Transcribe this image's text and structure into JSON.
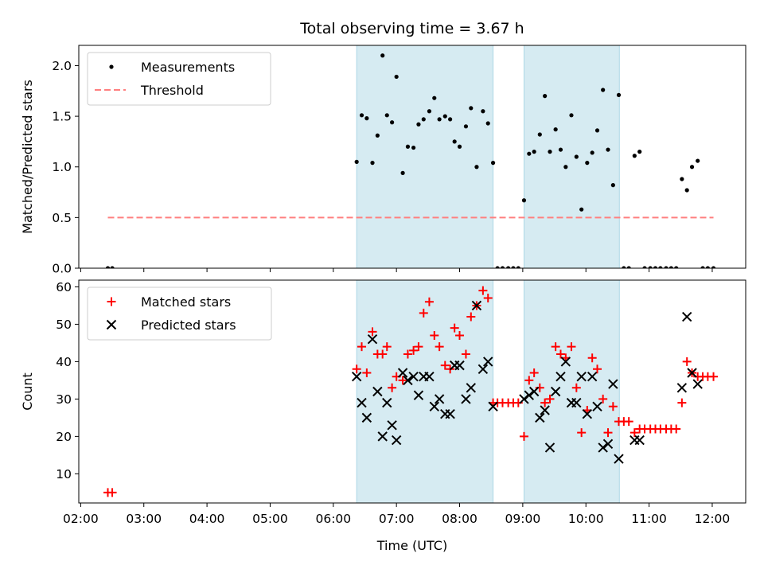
{
  "title": "Total observing time = 3.67 h",
  "colors": {
    "shade": "#add8e6",
    "measurements": "#000000",
    "threshold": "#ff7f7f",
    "matched": "#ff0000",
    "predicted": "#000000"
  },
  "chart_data": [
    {
      "type": "scatter",
      "ylabel": "Matched/Predicted stars",
      "xlim": [
        1.97,
        12.53
      ],
      "ylim": [
        0,
        2.2
      ],
      "yticks": [
        0.0,
        0.5,
        1.0,
        1.5,
        2.0
      ],
      "yticklabels": [
        "0.0",
        "0.5",
        "1.0",
        "1.5",
        "2.0"
      ],
      "legend": {
        "location": "top-left"
      },
      "shaded_spans": [
        [
          6.37,
          8.53
        ],
        [
          9.02,
          10.53
        ]
      ],
      "series": [
        {
          "name": "Measurements",
          "marker": "dot",
          "x": [
            2.43,
            2.5,
            6.37,
            6.45,
            6.53,
            6.62,
            6.7,
            6.78,
            6.85,
            6.93,
            7.0,
            7.1,
            7.18,
            7.27,
            7.35,
            7.43,
            7.52,
            7.6,
            7.68,
            7.77,
            7.85,
            7.92,
            8.0,
            8.1,
            8.18,
            8.27,
            8.37,
            8.45,
            8.53,
            8.6,
            8.68,
            8.77,
            8.85,
            8.93,
            9.02,
            9.1,
            9.18,
            9.27,
            9.35,
            9.43,
            9.52,
            9.6,
            9.68,
            9.77,
            9.85,
            9.93,
            10.02,
            10.1,
            10.18,
            10.27,
            10.35,
            10.43,
            10.52,
            10.6,
            10.68,
            10.77,
            10.85,
            10.93,
            11.02,
            11.1,
            11.18,
            11.27,
            11.35,
            11.43,
            11.52,
            11.6,
            11.68,
            11.77,
            11.85,
            11.93,
            12.02
          ],
          "y": [
            0,
            0,
            1.05,
            1.51,
            1.48,
            1.04,
            1.31,
            2.1,
            1.51,
            1.44,
            1.89,
            0.94,
            1.2,
            1.19,
            1.42,
            1.47,
            1.55,
            1.68,
            1.47,
            1.5,
            1.47,
            1.25,
            1.2,
            1.4,
            1.58,
            1.0,
            1.55,
            1.43,
            1.04,
            0,
            0,
            0,
            0,
            0,
            0.67,
            1.13,
            1.15,
            1.32,
            1.7,
            1.15,
            1.37,
            1.17,
            1.0,
            1.51,
            1.1,
            0.58,
            1.04,
            1.14,
            1.36,
            1.76,
            1.17,
            0.82,
            1.71,
            0,
            0,
            1.11,
            1.15,
            0,
            0,
            0,
            0,
            0,
            0,
            0,
            0.88,
            0.77,
            1.0,
            1.06,
            0,
            0,
            0
          ]
        },
        {
          "name": "Threshold",
          "style": "dashed",
          "x": [
            2.43,
            12.02
          ],
          "y": [
            0.5,
            0.5
          ]
        }
      ]
    },
    {
      "type": "scatter",
      "xlabel": "Time (UTC)",
      "ylabel": "Count",
      "xlim": [
        1.97,
        12.53
      ],
      "ylim": [
        2.2,
        61.8
      ],
      "xticks": [
        2,
        3,
        4,
        5,
        6,
        7,
        8,
        9,
        10,
        11,
        12
      ],
      "xticklabels": [
        "02:00",
        "03:00",
        "04:00",
        "05:00",
        "06:00",
        "07:00",
        "08:00",
        "09:00",
        "10:00",
        "11:00",
        "12:00"
      ],
      "yticks": [
        10,
        20,
        30,
        40,
        50,
        60
      ],
      "yticklabels": [
        "10",
        "20",
        "30",
        "40",
        "50",
        "60"
      ],
      "legend": {
        "location": "top-left"
      },
      "shaded_spans": [
        [
          6.37,
          8.53
        ],
        [
          9.02,
          10.53
        ]
      ],
      "series": [
        {
          "name": "Matched stars",
          "marker": "plus",
          "x": [
            2.43,
            2.5,
            6.37,
            6.45,
            6.53,
            6.62,
            6.7,
            6.78,
            6.85,
            6.93,
            7.0,
            7.1,
            7.18,
            7.27,
            7.35,
            7.43,
            7.52,
            7.6,
            7.68,
            7.77,
            7.85,
            7.92,
            8.0,
            8.1,
            8.18,
            8.27,
            8.37,
            8.45,
            8.53,
            8.6,
            8.68,
            8.77,
            8.85,
            8.93,
            9.02,
            9.1,
            9.18,
            9.27,
            9.35,
            9.43,
            9.52,
            9.6,
            9.68,
            9.77,
            9.85,
            9.93,
            10.02,
            10.1,
            10.18,
            10.27,
            10.35,
            10.43,
            10.52,
            10.6,
            10.68,
            10.77,
            10.85,
            10.93,
            11.02,
            11.1,
            11.18,
            11.27,
            11.35,
            11.43,
            11.52,
            11.6,
            11.68,
            11.77,
            11.85,
            11.93,
            12.02
          ],
          "y": [
            5,
            5,
            38,
            44,
            37,
            48,
            42,
            42,
            44,
            33,
            36,
            35,
            42,
            43,
            44,
            53,
            56,
            47,
            44,
            39,
            38,
            49,
            47,
            42,
            52,
            55,
            59,
            57,
            29,
            29,
            29,
            29,
            29,
            29,
            20,
            35,
            37,
            33,
            29,
            30,
            44,
            42,
            41,
            44,
            33,
            21,
            27,
            41,
            38,
            30,
            21,
            28,
            24,
            24,
            24,
            21,
            22,
            22,
            22,
            22,
            22,
            22,
            22,
            22,
            29,
            40,
            37,
            36,
            36,
            36,
            36
          ]
        },
        {
          "name": "Predicted stars",
          "marker": "x",
          "x": [
            6.37,
            6.45,
            6.53,
            6.62,
            6.7,
            6.78,
            6.85,
            6.93,
            7.0,
            7.1,
            7.18,
            7.27,
            7.35,
            7.43,
            7.52,
            7.6,
            7.68,
            7.77,
            7.85,
            7.92,
            8.0,
            8.1,
            8.18,
            8.27,
            8.37,
            8.45,
            8.53,
            9.02,
            9.1,
            9.18,
            9.27,
            9.35,
            9.43,
            9.52,
            9.6,
            9.68,
            9.77,
            9.85,
            9.93,
            10.02,
            10.1,
            10.18,
            10.27,
            10.35,
            10.43,
            10.52,
            10.77,
            10.85,
            11.52,
            11.6,
            11.68,
            11.77
          ],
          "y": [
            36,
            29,
            25,
            46,
            32,
            20,
            29,
            23,
            19,
            37,
            35,
            36,
            31,
            36,
            36,
            28,
            30,
            26,
            26,
            39,
            39,
            30,
            33,
            55,
            38,
            40,
            28,
            30,
            31,
            32,
            25,
            27,
            17,
            32,
            36,
            40,
            29,
            29,
            36,
            26,
            36,
            28,
            17,
            18,
            34,
            14,
            19,
            19,
            33,
            52,
            37,
            34
          ]
        }
      ]
    }
  ]
}
